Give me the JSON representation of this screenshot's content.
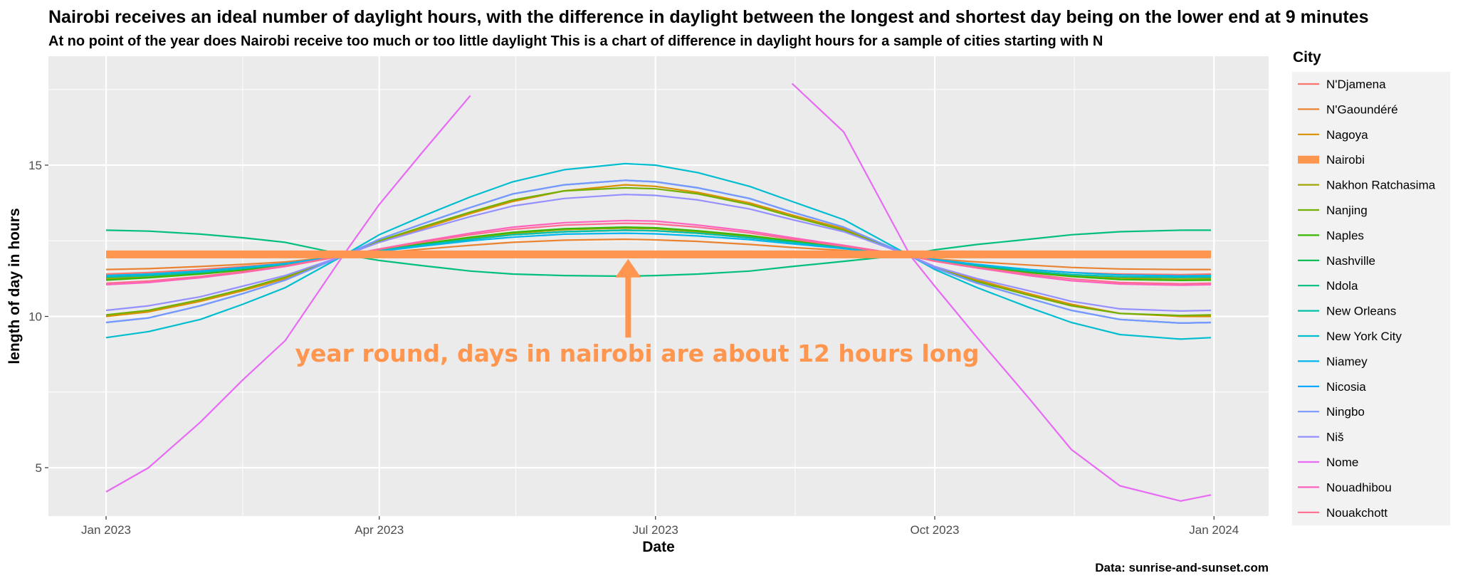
{
  "chart_data": {
    "type": "line",
    "title": "Nairobi receives an ideal number of daylight hours, with the difference in daylight between the longest and shortest day being on the lower end at 9 minutes",
    "subtitle": "At no point of the year does Nairobi receive too much or too little daylight This is a chart of difference in daylight hours for a sample of cities starting with N",
    "xlabel": "Date",
    "ylabel": "length of day in hours",
    "caption": "Data: sunrise-and-sunset.com",
    "legend_title": "City",
    "legend_position": "right",
    "grid": true,
    "xlim": [
      "2022-12-13",
      "2024-01-19"
    ],
    "ylim": [
      3.4,
      18.6
    ],
    "x_ticks": [
      {
        "date": "2023-01-01",
        "label": "Jan 2023"
      },
      {
        "date": "2023-04-01",
        "label": "Apr 2023"
      },
      {
        "date": "2023-07-01",
        "label": "Jul 2023"
      },
      {
        "date": "2023-10-01",
        "label": "Oct 2023"
      },
      {
        "date": "2024-01-01",
        "label": "Jan 2024"
      }
    ],
    "x_minor_ticks": [
      "2023-02-15",
      "2023-05-16",
      "2023-08-16",
      "2023-11-16"
    ],
    "y_ticks": [
      {
        "value": 5,
        "label": "5"
      },
      {
        "value": 10,
        "label": "10"
      },
      {
        "value": 15,
        "label": "15"
      }
    ],
    "y_minor_ticks": [
      7.5,
      12.5,
      17.5
    ],
    "x_dates": [
      "2023-01-01",
      "2023-01-15",
      "2023-02-01",
      "2023-02-15",
      "2023-03-01",
      "2023-03-20",
      "2023-04-01",
      "2023-04-15",
      "2023-05-01",
      "2023-05-15",
      "2023-06-01",
      "2023-06-21",
      "2023-07-01",
      "2023-07-15",
      "2023-08-01",
      "2023-08-15",
      "2023-09-01",
      "2023-09-23",
      "2023-10-01",
      "2023-10-15",
      "2023-11-01",
      "2023-11-15",
      "2023-12-01",
      "2023-12-21",
      "2023-12-31"
    ],
    "series": [
      {
        "name": "N'Djamena",
        "color": "#F8766D",
        "values": [
          11.4,
          11.45,
          11.55,
          11.65,
          11.75,
          12.0,
          12.15,
          12.35,
          12.55,
          12.7,
          12.8,
          12.85,
          12.83,
          12.75,
          12.6,
          12.45,
          12.28,
          12.0,
          11.85,
          11.7,
          11.55,
          11.45,
          11.4,
          11.38,
          11.4
        ]
      },
      {
        "name": "N'Gaoundéré",
        "color": "#EA8331",
        "values": [
          11.55,
          11.58,
          11.65,
          11.72,
          11.8,
          12.0,
          12.1,
          12.22,
          12.35,
          12.45,
          12.52,
          12.55,
          12.53,
          12.48,
          12.38,
          12.28,
          12.18,
          12.0,
          11.9,
          11.8,
          11.7,
          11.62,
          11.57,
          11.55,
          11.55
        ]
      },
      {
        "name": "Nagoya",
        "color": "#D89000",
        "values": [
          10.0,
          10.15,
          10.5,
          10.85,
          11.25,
          12.0,
          12.45,
          12.9,
          13.4,
          13.8,
          14.15,
          14.35,
          14.3,
          14.1,
          13.75,
          13.35,
          12.9,
          12.0,
          11.65,
          11.2,
          10.75,
          10.4,
          10.1,
          10.0,
          10.0
        ]
      },
      {
        "name": "Nairobi",
        "color": "#FF964F",
        "thick": true,
        "values": [
          12.05,
          12.05,
          12.05,
          12.05,
          12.05,
          12.05,
          12.05,
          12.05,
          12.05,
          12.05,
          12.05,
          12.05,
          12.05,
          12.05,
          12.05,
          12.05,
          12.05,
          12.05,
          12.05,
          12.05,
          12.05,
          12.05,
          12.05,
          12.05,
          12.05
        ]
      },
      {
        "name": "Nakhon Ratchasima",
        "color": "#A3A500",
        "values": [
          11.25,
          11.3,
          11.42,
          11.55,
          11.7,
          12.0,
          12.18,
          12.38,
          12.6,
          12.75,
          12.87,
          12.92,
          12.9,
          12.8,
          12.65,
          12.48,
          12.28,
          12.0,
          11.85,
          11.65,
          11.48,
          11.35,
          11.27,
          11.23,
          11.25
        ]
      },
      {
        "name": "Nanjing",
        "color": "#72B000",
        "values": [
          10.05,
          10.2,
          10.55,
          10.9,
          11.3,
          12.0,
          12.5,
          12.95,
          13.45,
          13.85,
          14.15,
          14.25,
          14.22,
          14.05,
          13.7,
          13.3,
          12.85,
          12.0,
          11.6,
          11.15,
          10.7,
          10.35,
          10.1,
          10.03,
          10.05
        ]
      },
      {
        "name": "Naples",
        "color": "#39B600",
        "values": [
          11.2,
          11.28,
          11.4,
          11.53,
          11.68,
          12.0,
          12.2,
          12.4,
          12.62,
          12.78,
          12.9,
          12.95,
          12.93,
          12.83,
          12.67,
          12.5,
          12.3,
          12.0,
          11.85,
          11.65,
          11.45,
          11.32,
          11.22,
          11.19,
          11.2
        ]
      },
      {
        "name": "Nashville",
        "color": "#00BB4E",
        "values": [
          11.3,
          11.35,
          11.45,
          11.58,
          11.72,
          12.0,
          12.18,
          12.36,
          12.55,
          12.7,
          12.8,
          12.85,
          12.83,
          12.75,
          12.6,
          12.45,
          12.27,
          12.0,
          11.86,
          11.68,
          11.5,
          11.38,
          11.31,
          11.29,
          11.3
        ]
      },
      {
        "name": "Ndola",
        "color": "#00BF7D",
        "values": [
          12.85,
          12.82,
          12.72,
          12.6,
          12.45,
          12.05,
          11.85,
          11.68,
          11.5,
          11.4,
          11.35,
          11.33,
          11.35,
          11.4,
          11.5,
          11.65,
          11.82,
          12.05,
          12.2,
          12.38,
          12.55,
          12.7,
          12.8,
          12.85,
          12.85
        ]
      },
      {
        "name": "New Orleans",
        "color": "#00C1A7",
        "values": [
          11.3,
          11.35,
          11.45,
          11.58,
          11.72,
          12.0,
          12.18,
          12.36,
          12.55,
          12.7,
          12.8,
          12.85,
          12.83,
          12.75,
          12.6,
          12.45,
          12.27,
          12.0,
          11.86,
          11.68,
          11.5,
          11.38,
          11.31,
          11.29,
          11.3
        ]
      },
      {
        "name": "New York City",
        "color": "#00BDD0",
        "values": [
          9.3,
          9.5,
          9.9,
          10.4,
          10.95,
          12.0,
          12.7,
          13.3,
          13.95,
          14.45,
          14.85,
          15.05,
          15.0,
          14.75,
          14.3,
          13.8,
          13.2,
          12.0,
          11.55,
          10.95,
          10.3,
          9.8,
          9.4,
          9.25,
          9.3
        ]
      },
      {
        "name": "Niamey",
        "color": "#00B5EE",
        "values": [
          11.35,
          11.4,
          11.5,
          11.62,
          11.75,
          12.0,
          12.15,
          12.32,
          12.5,
          12.62,
          12.72,
          12.75,
          12.73,
          12.66,
          12.54,
          12.4,
          12.24,
          12.0,
          11.88,
          11.72,
          11.55,
          11.45,
          11.37,
          11.34,
          11.35
        ]
      },
      {
        "name": "Nicosia",
        "color": "#00A5FF",
        "values": [
          9.8,
          9.95,
          10.35,
          10.75,
          11.2,
          12.0,
          12.55,
          13.05,
          13.6,
          14.05,
          14.35,
          14.5,
          14.45,
          14.25,
          13.9,
          13.45,
          12.95,
          12.0,
          11.6,
          11.1,
          10.6,
          10.2,
          9.9,
          9.78,
          9.8
        ]
      },
      {
        "name": "Ningbo",
        "color": "#7997FF",
        "values": [
          9.8,
          9.95,
          10.35,
          10.75,
          11.2,
          12.0,
          12.55,
          13.05,
          13.6,
          14.05,
          14.35,
          14.5,
          14.45,
          14.25,
          13.9,
          13.45,
          12.95,
          12.0,
          11.6,
          11.1,
          10.6,
          10.2,
          9.9,
          9.78,
          9.8
        ]
      },
      {
        "name": "Niš",
        "color": "#9590FF",
        "values": [
          10.2,
          10.35,
          10.65,
          11.0,
          11.35,
          12.0,
          12.45,
          12.85,
          13.3,
          13.65,
          13.9,
          14.03,
          14.0,
          13.85,
          13.55,
          13.2,
          12.8,
          12.0,
          11.65,
          11.25,
          10.85,
          10.5,
          10.25,
          10.18,
          10.2
        ]
      },
      {
        "name": "Nome",
        "color": "#E76BF3",
        "values": [
          4.2,
          5.0,
          6.5,
          7.9,
          9.2,
          12.0,
          13.7,
          15.4,
          17.3,
          null,
          null,
          null,
          null,
          null,
          null,
          17.7,
          16.1,
          12.0,
          11.0,
          9.3,
          7.3,
          5.6,
          4.4,
          3.9,
          4.1
        ]
      },
      {
        "name": "Nouadhibou",
        "color": "#FF62BC",
        "values": [
          11.05,
          11.12,
          11.28,
          11.45,
          11.65,
          12.0,
          12.23,
          12.48,
          12.75,
          12.95,
          13.1,
          13.17,
          13.15,
          13.02,
          12.82,
          12.6,
          12.35,
          12.0,
          11.82,
          11.6,
          11.35,
          11.18,
          11.07,
          11.03,
          11.05
        ]
      },
      {
        "name": "Nouakchott",
        "color": "#FF6C91",
        "values": [
          11.1,
          11.17,
          11.32,
          11.48,
          11.67,
          12.0,
          12.22,
          12.45,
          12.7,
          12.88,
          13.02,
          13.08,
          13.06,
          12.95,
          12.76,
          12.55,
          12.32,
          12.0,
          11.83,
          11.62,
          11.4,
          11.24,
          11.12,
          11.08,
          11.1
        ]
      }
    ],
    "annotation": {
      "text": "year round, days in nairobi are about 12 hours long",
      "color": "#FF964F",
      "arrow_from": {
        "date": "2023-06-22",
        "value": 9.3
      },
      "arrow_to": {
        "date": "2023-06-22",
        "value": 11.9
      }
    }
  }
}
